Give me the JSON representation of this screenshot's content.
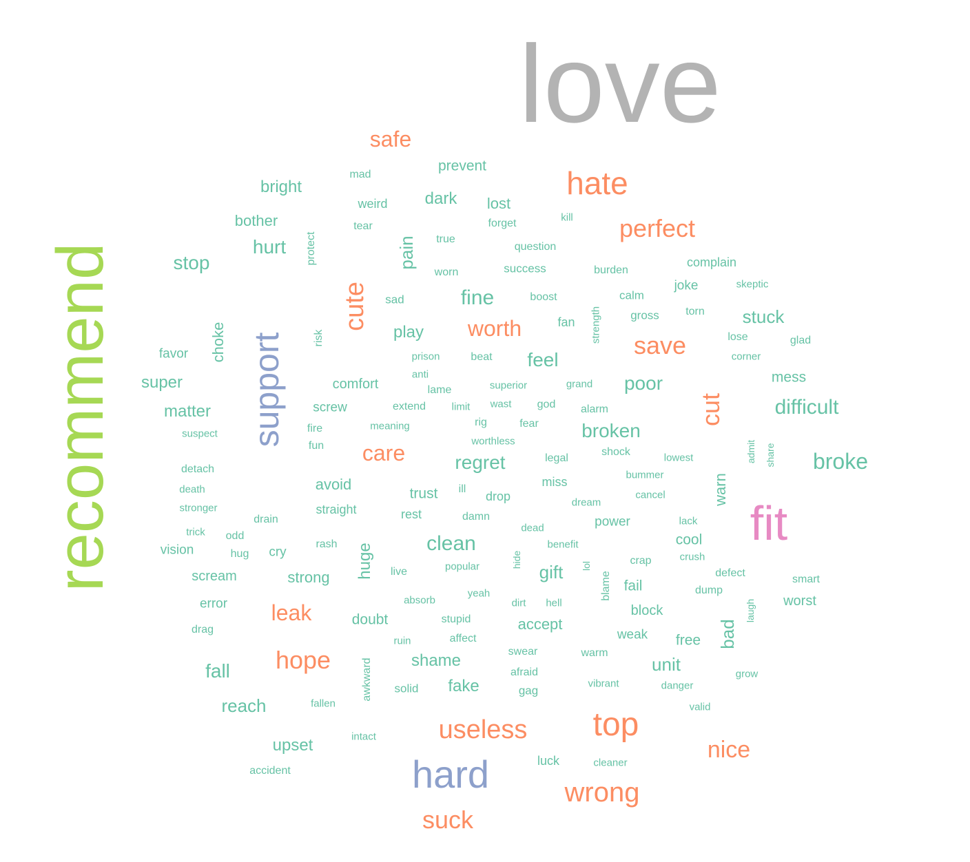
{
  "colors": {
    "teal": "#66c2a5",
    "orange": "#fc8d62",
    "blue": "#8da0cb",
    "pink": "#e78ac3",
    "green": "#a6d854",
    "gray": "#b3b3b3"
  },
  "words": [
    {
      "text": "love",
      "weight": 160,
      "color": "gray",
      "rotated": false
    },
    {
      "text": "recommend",
      "weight": 96,
      "color": "green",
      "rotated": true
    },
    {
      "text": "fit",
      "weight": 70,
      "color": "pink",
      "rotated": false
    },
    {
      "text": "hard",
      "weight": 56,
      "color": "blue",
      "rotated": false
    },
    {
      "text": "support",
      "weight": 50,
      "color": "blue",
      "rotated": true
    },
    {
      "text": "top",
      "weight": 48,
      "color": "orange",
      "rotated": false
    },
    {
      "text": "hate",
      "weight": 46,
      "color": "orange",
      "rotated": false
    },
    {
      "text": "useless",
      "weight": 38,
      "color": "orange",
      "rotated": false
    },
    {
      "text": "wrong",
      "weight": 40,
      "color": "orange",
      "rotated": false
    },
    {
      "text": "cute",
      "weight": 38,
      "color": "orange",
      "rotated": true
    },
    {
      "text": "perfect",
      "weight": 36,
      "color": "orange",
      "rotated": false
    },
    {
      "text": "save",
      "weight": 36,
      "color": "orange",
      "rotated": false
    },
    {
      "text": "hope",
      "weight": 36,
      "color": "orange",
      "rotated": false
    },
    {
      "text": "suck",
      "weight": 36,
      "color": "orange",
      "rotated": false
    },
    {
      "text": "nice",
      "weight": 34,
      "color": "orange",
      "rotated": false
    },
    {
      "text": "cut",
      "weight": 36,
      "color": "orange",
      "rotated": true
    },
    {
      "text": "care",
      "weight": 32,
      "color": "orange",
      "rotated": false
    },
    {
      "text": "worth",
      "weight": 32,
      "color": "orange",
      "rotated": false
    },
    {
      "text": "leak",
      "weight": 32,
      "color": "orange",
      "rotated": false
    },
    {
      "text": "safe",
      "weight": 32,
      "color": "orange",
      "rotated": false
    },
    {
      "text": "broke",
      "weight": 32,
      "color": "teal",
      "rotated": false
    },
    {
      "text": "clean",
      "weight": 30,
      "color": "teal",
      "rotated": false
    },
    {
      "text": "difficult",
      "weight": 30,
      "color": "teal",
      "rotated": false
    },
    {
      "text": "fine",
      "weight": 30,
      "color": "teal",
      "rotated": false
    },
    {
      "text": "regret",
      "weight": 28,
      "color": "teal",
      "rotated": false
    },
    {
      "text": "poor",
      "weight": 28,
      "color": "teal",
      "rotated": false
    },
    {
      "text": "broken",
      "weight": 28,
      "color": "teal",
      "rotated": false
    },
    {
      "text": "feel",
      "weight": 28,
      "color": "teal",
      "rotated": false
    },
    {
      "text": "fall",
      "weight": 28,
      "color": "teal",
      "rotated": false
    },
    {
      "text": "hurt",
      "weight": 28,
      "color": "teal",
      "rotated": false
    },
    {
      "text": "stop",
      "weight": 28,
      "color": "teal",
      "rotated": false
    },
    {
      "text": "pain",
      "weight": 26,
      "color": "teal",
      "rotated": true
    },
    {
      "text": "bad",
      "weight": 26,
      "color": "teal",
      "rotated": true
    },
    {
      "text": "stuck",
      "weight": 26,
      "color": "teal",
      "rotated": false
    },
    {
      "text": "reach",
      "weight": 26,
      "color": "teal",
      "rotated": false
    },
    {
      "text": "gift",
      "weight": 26,
      "color": "teal",
      "rotated": false
    },
    {
      "text": "unit",
      "weight": 26,
      "color": "teal",
      "rotated": false
    },
    {
      "text": "bright",
      "weight": 24,
      "color": "teal",
      "rotated": false
    },
    {
      "text": "dark",
      "weight": 24,
      "color": "teal",
      "rotated": false
    },
    {
      "text": "play",
      "weight": 24,
      "color": "teal",
      "rotated": false
    },
    {
      "text": "super",
      "weight": 24,
      "color": "teal",
      "rotated": false
    },
    {
      "text": "matter",
      "weight": 24,
      "color": "teal",
      "rotated": false
    },
    {
      "text": "upset",
      "weight": 24,
      "color": "teal",
      "rotated": false
    },
    {
      "text": "shame",
      "weight": 24,
      "color": "teal",
      "rotated": false
    },
    {
      "text": "fake",
      "weight": 24,
      "color": "teal",
      "rotated": false
    },
    {
      "text": "huge",
      "weight": 24,
      "color": "teal",
      "rotated": true
    },
    {
      "text": "choke",
      "weight": 22,
      "color": "teal",
      "rotated": true
    },
    {
      "text": "warn",
      "weight": 22,
      "color": "teal",
      "rotated": true
    },
    {
      "text": "lost",
      "weight": 22,
      "color": "teal",
      "rotated": false
    },
    {
      "text": "bother",
      "weight": 22,
      "color": "teal",
      "rotated": false
    },
    {
      "text": "prevent",
      "weight": 21,
      "color": "teal",
      "rotated": false
    },
    {
      "text": "avoid",
      "weight": 22,
      "color": "teal",
      "rotated": false
    },
    {
      "text": "trust",
      "weight": 21,
      "color": "teal",
      "rotated": false
    },
    {
      "text": "strong",
      "weight": 22,
      "color": "teal",
      "rotated": false
    },
    {
      "text": "doubt",
      "weight": 21,
      "color": "teal",
      "rotated": false
    },
    {
      "text": "accept",
      "weight": 22,
      "color": "teal",
      "rotated": false
    },
    {
      "text": "cool",
      "weight": 21,
      "color": "teal",
      "rotated": false
    },
    {
      "text": "free",
      "weight": 21,
      "color": "teal",
      "rotated": false
    },
    {
      "text": "mess",
      "weight": 21,
      "color": "teal",
      "rotated": false
    },
    {
      "text": "worst",
      "weight": 20,
      "color": "teal",
      "rotated": false
    },
    {
      "text": "fail",
      "weight": 21,
      "color": "teal",
      "rotated": false
    },
    {
      "text": "block",
      "weight": 20,
      "color": "teal",
      "rotated": false
    },
    {
      "text": "scream",
      "weight": 20,
      "color": "teal",
      "rotated": false
    },
    {
      "text": "comfort",
      "weight": 20,
      "color": "teal",
      "rotated": false
    },
    {
      "text": "screw",
      "weight": 19,
      "color": "teal",
      "rotated": false
    },
    {
      "text": "favor",
      "weight": 19,
      "color": "teal",
      "rotated": false
    },
    {
      "text": "vision",
      "weight": 19,
      "color": "teal",
      "rotated": false
    },
    {
      "text": "cry",
      "weight": 19,
      "color": "teal",
      "rotated": false
    },
    {
      "text": "weird",
      "weight": 18,
      "color": "teal",
      "rotated": false
    },
    {
      "text": "complain",
      "weight": 18,
      "color": "teal",
      "rotated": false
    },
    {
      "text": "joke",
      "weight": 19,
      "color": "teal",
      "rotated": false
    },
    {
      "text": "power",
      "weight": 19,
      "color": "teal",
      "rotated": false
    },
    {
      "text": "weak",
      "weight": 19,
      "color": "teal",
      "rotated": false
    },
    {
      "text": "straight",
      "weight": 18,
      "color": "teal",
      "rotated": false
    },
    {
      "text": "rest",
      "weight": 18,
      "color": "teal",
      "rotated": false
    },
    {
      "text": "drop",
      "weight": 18,
      "color": "teal",
      "rotated": false
    },
    {
      "text": "miss",
      "weight": 18,
      "color": "teal",
      "rotated": false
    },
    {
      "text": "error",
      "weight": 19,
      "color": "teal",
      "rotated": false
    },
    {
      "text": "success",
      "weight": 17,
      "color": "teal",
      "rotated": false
    },
    {
      "text": "question",
      "weight": 16,
      "color": "teal",
      "rotated": false
    },
    {
      "text": "fan",
      "weight": 18,
      "color": "teal",
      "rotated": false
    },
    {
      "text": "calm",
      "weight": 17,
      "color": "teal",
      "rotated": false
    },
    {
      "text": "gross",
      "weight": 17,
      "color": "teal",
      "rotated": false
    },
    {
      "text": "lose",
      "weight": 16,
      "color": "teal",
      "rotated": false
    },
    {
      "text": "glad",
      "weight": 16,
      "color": "teal",
      "rotated": false
    },
    {
      "text": "swear",
      "weight": 16,
      "color": "teal",
      "rotated": false
    },
    {
      "text": "afraid",
      "weight": 16,
      "color": "teal",
      "rotated": false
    },
    {
      "text": "gag",
      "weight": 17,
      "color": "teal",
      "rotated": false
    },
    {
      "text": "solid",
      "weight": 17,
      "color": "teal",
      "rotated": false
    },
    {
      "text": "awkward",
      "weight": 16,
      "color": "teal",
      "rotated": true
    },
    {
      "text": "protect",
      "weight": 16,
      "color": "teal",
      "rotated": true
    },
    {
      "text": "risk",
      "weight": 16,
      "color": "teal",
      "rotated": true
    },
    {
      "text": "strength",
      "weight": 15,
      "color": "teal",
      "rotated": true
    },
    {
      "text": "mad",
      "weight": 16,
      "color": "teal",
      "rotated": false
    },
    {
      "text": "tear",
      "weight": 16,
      "color": "teal",
      "rotated": false
    },
    {
      "text": "forget",
      "weight": 16,
      "color": "teal",
      "rotated": false
    },
    {
      "text": "kill",
      "weight": 15,
      "color": "teal",
      "rotated": false
    },
    {
      "text": "true",
      "weight": 16,
      "color": "teal",
      "rotated": false
    },
    {
      "text": "worn",
      "weight": 16,
      "color": "teal",
      "rotated": false
    },
    {
      "text": "burden",
      "weight": 16,
      "color": "teal",
      "rotated": false
    },
    {
      "text": "skeptic",
      "weight": 15,
      "color": "teal",
      "rotated": false
    },
    {
      "text": "sad",
      "weight": 17,
      "color": "teal",
      "rotated": false
    },
    {
      "text": "boost",
      "weight": 16,
      "color": "teal",
      "rotated": false
    },
    {
      "text": "torn",
      "weight": 16,
      "color": "teal",
      "rotated": false
    },
    {
      "text": "prison",
      "weight": 15,
      "color": "teal",
      "rotated": false
    },
    {
      "text": "beat",
      "weight": 16,
      "color": "teal",
      "rotated": false
    },
    {
      "text": "corner",
      "weight": 15,
      "color": "teal",
      "rotated": false
    },
    {
      "text": "anti",
      "weight": 15,
      "color": "teal",
      "rotated": false
    },
    {
      "text": "superior",
      "weight": 15,
      "color": "teal",
      "rotated": false
    },
    {
      "text": "grand",
      "weight": 15,
      "color": "teal",
      "rotated": false
    },
    {
      "text": "lame",
      "weight": 16,
      "color": "teal",
      "rotated": false
    },
    {
      "text": "extend",
      "weight": 16,
      "color": "teal",
      "rotated": false
    },
    {
      "text": "limit",
      "weight": 15,
      "color": "teal",
      "rotated": false
    },
    {
      "text": "wast",
      "weight": 15,
      "color": "teal",
      "rotated": false
    },
    {
      "text": "god",
      "weight": 16,
      "color": "teal",
      "rotated": false
    },
    {
      "text": "alarm",
      "weight": 16,
      "color": "teal",
      "rotated": false
    },
    {
      "text": "fire",
      "weight": 16,
      "color": "teal",
      "rotated": false
    },
    {
      "text": "meaning",
      "weight": 15,
      "color": "teal",
      "rotated": false
    },
    {
      "text": "rig",
      "weight": 16,
      "color": "teal",
      "rotated": false
    },
    {
      "text": "fear",
      "weight": 16,
      "color": "teal",
      "rotated": false
    },
    {
      "text": "suspect",
      "weight": 15,
      "color": "teal",
      "rotated": false
    },
    {
      "text": "fun",
      "weight": 16,
      "color": "teal",
      "rotated": false
    },
    {
      "text": "worthless",
      "weight": 15,
      "color": "teal",
      "rotated": false
    },
    {
      "text": "shock",
      "weight": 16,
      "color": "teal",
      "rotated": false
    },
    {
      "text": "admit",
      "weight": 14,
      "color": "teal",
      "rotated": true
    },
    {
      "text": "share",
      "weight": 14,
      "color": "teal",
      "rotated": true
    },
    {
      "text": "legal",
      "weight": 16,
      "color": "teal",
      "rotated": false
    },
    {
      "text": "lowest",
      "weight": 15,
      "color": "teal",
      "rotated": false
    },
    {
      "text": "detach",
      "weight": 16,
      "color": "teal",
      "rotated": false
    },
    {
      "text": "bummer",
      "weight": 15,
      "color": "teal",
      "rotated": false
    },
    {
      "text": "death",
      "weight": 15,
      "color": "teal",
      "rotated": false
    },
    {
      "text": "ill",
      "weight": 16,
      "color": "teal",
      "rotated": false
    },
    {
      "text": "dream",
      "weight": 15,
      "color": "teal",
      "rotated": false
    },
    {
      "text": "cancel",
      "weight": 15,
      "color": "teal",
      "rotated": false
    },
    {
      "text": "stronger",
      "weight": 15,
      "color": "teal",
      "rotated": false
    },
    {
      "text": "damn",
      "weight": 16,
      "color": "teal",
      "rotated": false
    },
    {
      "text": "drain",
      "weight": 16,
      "color": "teal",
      "rotated": false
    },
    {
      "text": "lack",
      "weight": 15,
      "color": "teal",
      "rotated": false
    },
    {
      "text": "trick",
      "weight": 15,
      "color": "teal",
      "rotated": false
    },
    {
      "text": "dead",
      "weight": 15,
      "color": "teal",
      "rotated": false
    },
    {
      "text": "odd",
      "weight": 16,
      "color": "teal",
      "rotated": false
    },
    {
      "text": "rash",
      "weight": 16,
      "color": "teal",
      "rotated": false
    },
    {
      "text": "benefit",
      "weight": 15,
      "color": "teal",
      "rotated": false
    },
    {
      "text": "hug",
      "weight": 16,
      "color": "teal",
      "rotated": false
    },
    {
      "text": "crush",
      "weight": 15,
      "color": "teal",
      "rotated": false
    },
    {
      "text": "hide",
      "weight": 14,
      "color": "teal",
      "rotated": true
    },
    {
      "text": "lol",
      "weight": 14,
      "color": "teal",
      "rotated": true
    },
    {
      "text": "crap",
      "weight": 16,
      "color": "teal",
      "rotated": false
    },
    {
      "text": "live",
      "weight": 16,
      "color": "teal",
      "rotated": false
    },
    {
      "text": "popular",
      "weight": 15,
      "color": "teal",
      "rotated": false
    },
    {
      "text": "defect",
      "weight": 16,
      "color": "teal",
      "rotated": false
    },
    {
      "text": "smart",
      "weight": 16,
      "color": "teal",
      "rotated": false
    },
    {
      "text": "blame",
      "weight": 16,
      "color": "teal",
      "rotated": true
    },
    {
      "text": "dump",
      "weight": 16,
      "color": "teal",
      "rotated": false
    },
    {
      "text": "yeah",
      "weight": 15,
      "color": "teal",
      "rotated": false
    },
    {
      "text": "absorb",
      "weight": 15,
      "color": "teal",
      "rotated": false
    },
    {
      "text": "dirt",
      "weight": 15,
      "color": "teal",
      "rotated": false
    },
    {
      "text": "hell",
      "weight": 15,
      "color": "teal",
      "rotated": false
    },
    {
      "text": "laugh",
      "weight": 14,
      "color": "teal",
      "rotated": true
    },
    {
      "text": "stupid",
      "weight": 16,
      "color": "teal",
      "rotated": false
    },
    {
      "text": "drag",
      "weight": 16,
      "color": "teal",
      "rotated": false
    },
    {
      "text": "affect",
      "weight": 16,
      "color": "teal",
      "rotated": false
    },
    {
      "text": "ruin",
      "weight": 15,
      "color": "teal",
      "rotated": false
    },
    {
      "text": "warm",
      "weight": 16,
      "color": "teal",
      "rotated": false
    },
    {
      "text": "grow",
      "weight": 15,
      "color": "teal",
      "rotated": false
    },
    {
      "text": "vibrant",
      "weight": 15,
      "color": "teal",
      "rotated": false
    },
    {
      "text": "danger",
      "weight": 15,
      "color": "teal",
      "rotated": false
    },
    {
      "text": "fallen",
      "weight": 15,
      "color": "teal",
      "rotated": false
    },
    {
      "text": "valid",
      "weight": 15,
      "color": "teal",
      "rotated": false
    },
    {
      "text": "intact",
      "weight": 15,
      "color": "teal",
      "rotated": false
    },
    {
      "text": "luck",
      "weight": 18,
      "color": "teal",
      "rotated": false
    },
    {
      "text": "cleaner",
      "weight": 15,
      "color": "teal",
      "rotated": false
    },
    {
      "text": "accident",
      "weight": 16,
      "color": "teal",
      "rotated": false
    }
  ]
}
